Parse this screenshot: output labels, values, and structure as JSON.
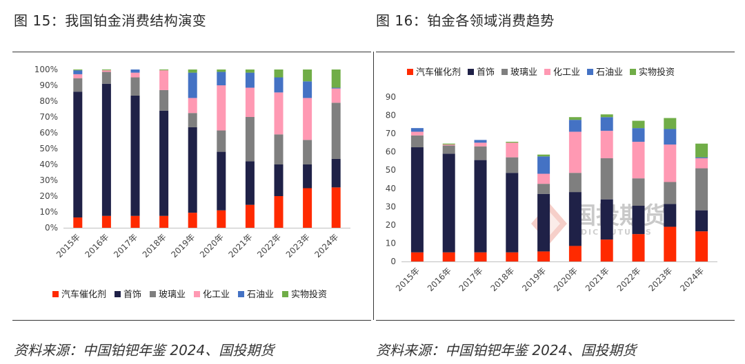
{
  "titles": {
    "left": "图 15：我国铂金消费结构演变",
    "right": "图 16：铂金各领域消费趋势"
  },
  "source": {
    "left": "资料来源：中国铂钯年鉴 2024、国投期货",
    "right": "资料来源：中国铂钯年鉴 2024、国投期货"
  },
  "colors": {
    "auto": "#ff2a00",
    "jewelry": "#1f2147",
    "glass": "#7f7f7f",
    "chemical": "#ff99b3",
    "petroleum": "#4472c4",
    "investment": "#70ad47"
  },
  "watermark": {
    "text": "国投期货",
    "sub": "SDIC FUTURES"
  },
  "chart_data": [
    {
      "type": "bar",
      "stacked": true,
      "percent": true,
      "title": "图 15：我国铂金消费结构演变",
      "categories": [
        "2015年",
        "2016年",
        "2017年",
        "2018年",
        "2019年",
        "2020年",
        "2021年",
        "2022年",
        "2023年",
        "2024年"
      ],
      "ylim": [
        0,
        100
      ],
      "yticks": [
        "0%",
        "10%",
        "20%",
        "30%",
        "40%",
        "50%",
        "60%",
        "70%",
        "80%",
        "90%",
        "100%"
      ],
      "legend_position": "bottom",
      "grid": false,
      "series": [
        {
          "name": "汽车催化剂",
          "color_key": "auto",
          "values": [
            6.5,
            7.5,
            7.5,
            7.5,
            9.5,
            11,
            14.5,
            20,
            25,
            25.5
          ]
        },
        {
          "name": "首饰",
          "color_key": "jewelry",
          "values": [
            79.5,
            83.5,
            76,
            66.5,
            54,
            37,
            27.5,
            20,
            15,
            18
          ]
        },
        {
          "name": "玻璃业",
          "color_key": "glass",
          "values": [
            8.5,
            7.5,
            11.5,
            13,
            9,
            13.5,
            28,
            19,
            15.5,
            35.5
          ]
        },
        {
          "name": "化工业",
          "color_key": "chemical",
          "values": [
            2.5,
            1,
            3,
            12.5,
            9.5,
            28.5,
            18.5,
            26.5,
            26.5,
            9
          ]
        },
        {
          "name": "石油业",
          "color_key": "petroleum",
          "values": [
            2.5,
            0,
            2,
            0,
            16,
            8.5,
            9.5,
            9.5,
            10.5,
            0.5
          ]
        },
        {
          "name": "实物投资",
          "color_key": "investment",
          "values": [
            0.5,
            0.5,
            0,
            0.5,
            2,
            1.5,
            2,
            5,
            7.5,
            11.5
          ]
        }
      ]
    },
    {
      "type": "bar",
      "stacked": true,
      "title": "图 16：铂金各领域消费趋势",
      "categories": [
        "2015年",
        "2016年",
        "2017年",
        "2018年",
        "2019年",
        "2020年",
        "2021年",
        "2022年",
        "2023年",
        "2024年"
      ],
      "ylim": [
        0,
        90
      ],
      "yticks": [
        "0",
        "10",
        "20",
        "30",
        "40",
        "50",
        "60",
        "70",
        "80",
        "90"
      ],
      "legend_position": "top",
      "grid": false,
      "series": [
        {
          "name": "汽车催化剂",
          "color_key": "auto",
          "values": [
            5,
            5,
            5,
            5,
            5.5,
            8.5,
            12,
            15,
            19,
            16.5
          ]
        },
        {
          "name": "首饰",
          "color_key": "jewelry",
          "values": [
            57.5,
            54,
            50.5,
            43.5,
            31.5,
            29.5,
            22,
            15.5,
            12.5,
            11.5
          ]
        },
        {
          "name": "玻璃业",
          "color_key": "glass",
          "values": [
            6.5,
            4.5,
            7.5,
            8.5,
            5.5,
            10.5,
            22.5,
            15,
            12,
            23
          ]
        },
        {
          "name": "化工业",
          "color_key": "chemical",
          "values": [
            2,
            0.5,
            2,
            8,
            5.5,
            22.5,
            15,
            20,
            20.5,
            5.5
          ]
        },
        {
          "name": "石油业",
          "color_key": "petroleum",
          "values": [
            2,
            0,
            1.5,
            0,
            9.5,
            6.5,
            7.5,
            7.5,
            8.5,
            0.5
          ]
        },
        {
          "name": "实物投资",
          "color_key": "investment",
          "values": [
            0,
            0.5,
            0,
            0.5,
            1,
            1.5,
            1.5,
            4,
            6,
            7.5
          ]
        }
      ]
    }
  ]
}
